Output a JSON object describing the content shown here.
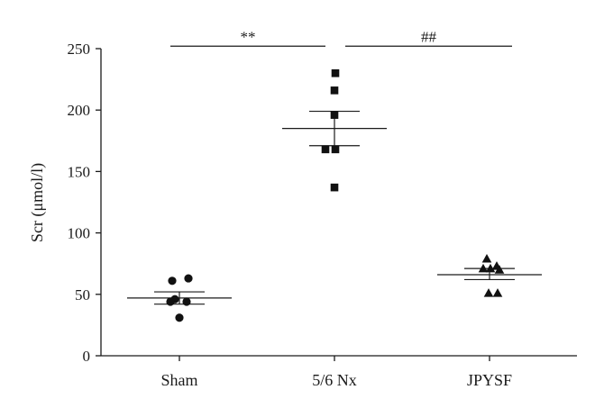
{
  "chart_data": {
    "type": "scatter",
    "subtype": "dot-plot-mean-sem",
    "title": "",
    "xlabel": "",
    "ylabel": "Scr (μmol/l)",
    "ylim": [
      0,
      250
    ],
    "yticks": [
      0,
      50,
      100,
      150,
      200,
      250
    ],
    "grid": false,
    "categories": [
      "Sham",
      "5/6 Nx",
      "JPYSF"
    ],
    "groups": [
      {
        "category": "Sham",
        "marker": "circle",
        "values": [
          63,
          61,
          46,
          44,
          44,
          31
        ],
        "mean": 47,
        "sem_low": 42,
        "sem_high": 52
      },
      {
        "category": "5/6 Nx",
        "marker": "square",
        "values": [
          230,
          216,
          196,
          168,
          168,
          137
        ],
        "mean": 185,
        "sem_low": 171,
        "sem_high": 199
      },
      {
        "category": "JPYSF",
        "marker": "triangle",
        "values": [
          79,
          73,
          71,
          71,
          70,
          51,
          51
        ],
        "mean": 66,
        "sem_low": 62,
        "sem_high": 71
      }
    ],
    "significance": [
      {
        "label": "**",
        "from": "Sham",
        "to": "5/6 Nx",
        "y": 252
      },
      {
        "label": "##",
        "from": "5/6 Nx",
        "to": "JPYSF",
        "y": 252
      }
    ]
  }
}
